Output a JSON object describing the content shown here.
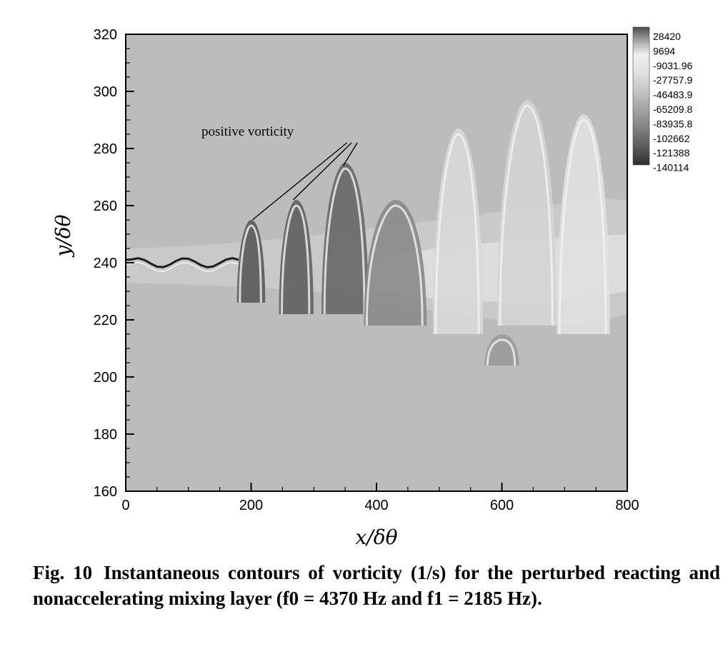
{
  "chart_data": {
    "type": "heatmap",
    "title": "",
    "xlabel": "x/δθ",
    "ylabel": "y/δθ",
    "xlim": [
      0,
      800
    ],
    "ylim": [
      160,
      320
    ],
    "x_ticks": [
      "0",
      "200",
      "400",
      "600",
      "800"
    ],
    "y_ticks": [
      "160",
      "180",
      "200",
      "220",
      "240",
      "260",
      "280",
      "300",
      "320"
    ],
    "x_tick_values": [
      0,
      200,
      400,
      600,
      800
    ],
    "y_tick_values": [
      160,
      180,
      200,
      220,
      240,
      260,
      280,
      300,
      320
    ],
    "colorscale": "grayscale",
    "legend_position": "top-right",
    "legend_levels": [
      "28420",
      "9694",
      "-9031.96",
      "-27757.9",
      "-46483.9",
      "-65209.8",
      "-83935.8",
      "-102662",
      "-121388",
      "-140114"
    ],
    "annotation": {
      "text": "positive vorticity",
      "x": 295,
      "y": 284,
      "targets": [
        [
          202,
          255
        ],
        [
          267,
          262
        ],
        [
          347,
          274
        ]
      ]
    },
    "structures": [
      {
        "kind": "vortex",
        "x": 200,
        "width": 45,
        "top": 255,
        "bottom": 226,
        "shade": "#5a5a5a"
      },
      {
        "kind": "vortex",
        "x": 272,
        "width": 55,
        "top": 262,
        "bottom": 222,
        "shade": "#5f5f5f"
      },
      {
        "kind": "vortex",
        "x": 350,
        "width": 75,
        "top": 275,
        "bottom": 222,
        "shade": "#676767"
      },
      {
        "kind": "vortex",
        "x": 430,
        "width": 100,
        "top": 262,
        "bottom": 218,
        "shade": "#8a8a8a"
      },
      {
        "kind": "vortex",
        "x": 530,
        "width": 80,
        "top": 287,
        "bottom": 215,
        "shade": "#d8d8d8"
      },
      {
        "kind": "vortex",
        "x": 640,
        "width": 95,
        "top": 297,
        "bottom": 218,
        "shade": "#d4d4d4"
      },
      {
        "kind": "vortex",
        "x": 730,
        "width": 85,
        "top": 292,
        "bottom": 215,
        "shade": "#e0e0e0"
      },
      {
        "kind": "blob",
        "x": 600,
        "width": 55,
        "top": 215,
        "bottom": 204,
        "shade": "#9a9a9a"
      }
    ]
  },
  "caption": {
    "lead": "Fig. 10",
    "text": "Instantaneous contours of vorticity (1/s) for the perturbed reacting and nonaccelerating mixing layer (f0 = 4370 Hz and f1 = 2185 Hz)."
  }
}
